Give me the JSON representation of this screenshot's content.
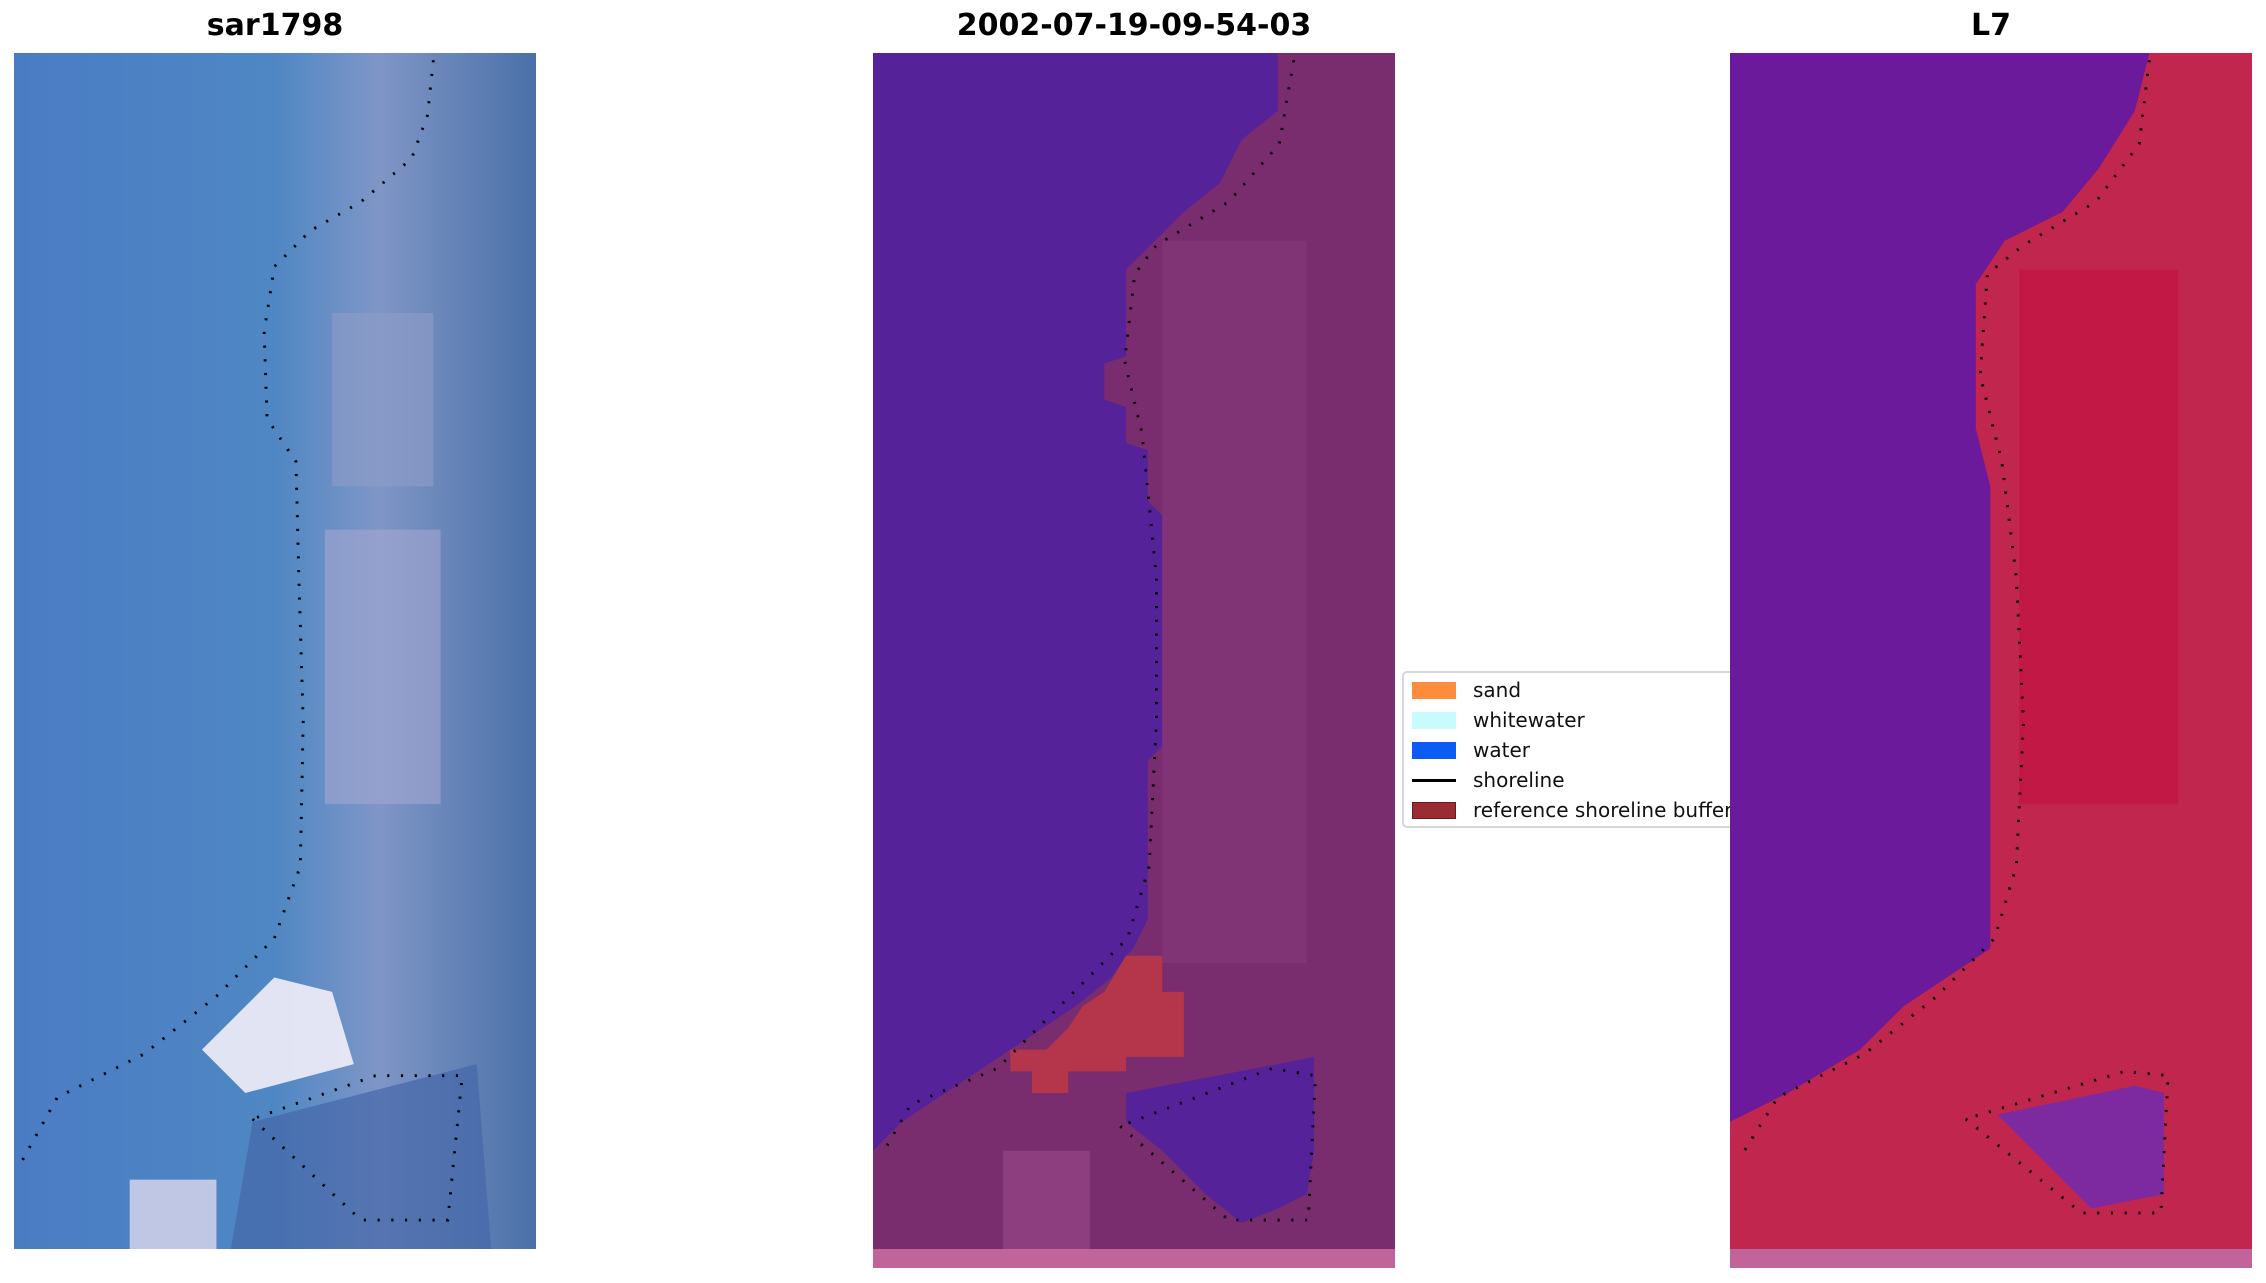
{
  "panels": [
    {
      "title": "sar1798"
    },
    {
      "title": "2002-07-19-09-54-03"
    },
    {
      "title": "L7"
    }
  ],
  "legend": {
    "items": [
      {
        "label": "sand",
        "color": "#ff8c3c",
        "kind": "patch"
      },
      {
        "label": "whitewater",
        "color": "#c8fcfc",
        "kind": "patch"
      },
      {
        "label": "water",
        "color": "#0a5cf5",
        "kind": "patch"
      },
      {
        "label": "shoreline",
        "color": "#000000",
        "kind": "line"
      },
      {
        "label": "reference shoreline buffer",
        "color": "#9b2c33",
        "kind": "patch"
      }
    ]
  }
}
